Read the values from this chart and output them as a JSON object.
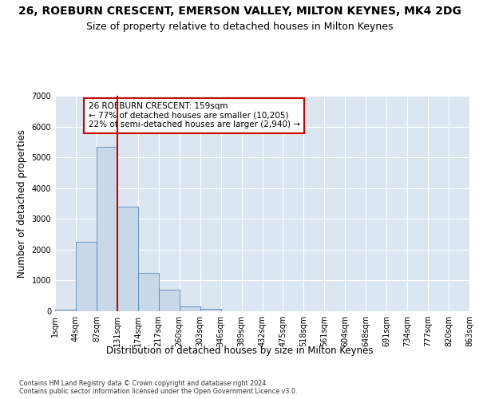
{
  "title": "26, ROEBURN CRESCENT, EMERSON VALLEY, MILTON KEYNES, MK4 2DG",
  "subtitle": "Size of property relative to detached houses in Milton Keynes",
  "xlabel": "Distribution of detached houses by size in Milton Keynes",
  "ylabel": "Number of detached properties",
  "footnote": "Contains HM Land Registry data © Crown copyright and database right 2024.\nContains public sector information licensed under the Open Government Licence v3.0.",
  "bins": [
    "1sqm",
    "44sqm",
    "87sqm",
    "131sqm",
    "174sqm",
    "217sqm",
    "260sqm",
    "303sqm",
    "346sqm",
    "389sqm",
    "432sqm",
    "475sqm",
    "518sqm",
    "561sqm",
    "604sqm",
    "648sqm",
    "691sqm",
    "734sqm",
    "777sqm",
    "820sqm",
    "863sqm"
  ],
  "values": [
    50,
    2250,
    5350,
    3400,
    1250,
    700,
    150,
    70,
    0,
    0,
    0,
    0,
    0,
    0,
    0,
    0,
    0,
    0,
    0,
    0
  ],
  "bar_color": "#c8d8e8",
  "bar_edge_color": "#5588bb",
  "vline_x": 3,
  "vline_color": "#cc0000",
  "annotation_text": "26 ROEBURN CRESCENT: 159sqm\n← 77% of detached houses are smaller (10,205)\n22% of semi-detached houses are larger (2,940) →",
  "annotation_box_color": "#ffffff",
  "annotation_box_edge": "#cc0000",
  "ylim": [
    0,
    7000
  ],
  "yticks": [
    0,
    1000,
    2000,
    3000,
    4000,
    5000,
    6000,
    7000
  ],
  "bg_color": "#dce6f0",
  "plot_bg_color": "#dce6f0",
  "title_fontsize": 10,
  "subtitle_fontsize": 9,
  "axis_label_fontsize": 8.5,
  "tick_fontsize": 7
}
